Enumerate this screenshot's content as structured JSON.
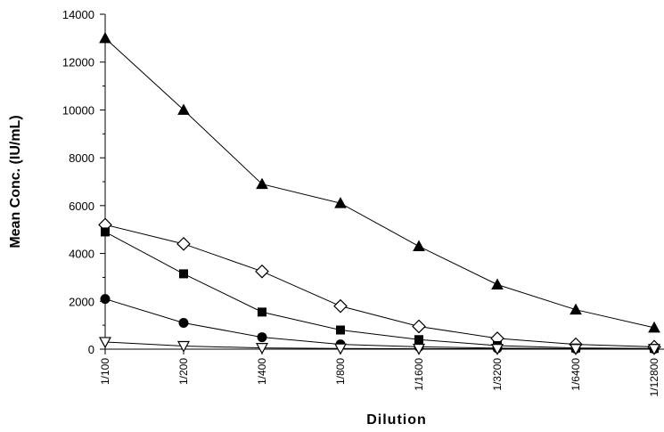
{
  "chart_data": {
    "type": "line",
    "title": "",
    "xlabel": "Dilution",
    "ylabel": "Mean Conc. (IU/mL)",
    "categories": [
      "1/100",
      "1/200",
      "1/400",
      "1/800",
      "1/1600",
      "1/3200",
      "1/6400",
      "1/12800"
    ],
    "ylim": [
      0,
      14000
    ],
    "yticks": [
      0,
      2000,
      4000,
      6000,
      8000,
      10000,
      12000,
      14000
    ],
    "grid": false,
    "legend": "none",
    "series": [
      {
        "marker": "filled-triangle",
        "color": "#000000",
        "values": [
          13000,
          10000,
          6900,
          6100,
          4300,
          2700,
          1650,
          900
        ]
      },
      {
        "marker": "open-diamond",
        "color": "#000000",
        "values": [
          5200,
          4400,
          3250,
          1800,
          950,
          450,
          200,
          100
        ]
      },
      {
        "marker": "filled-square",
        "color": "#000000",
        "values": [
          4900,
          3150,
          1550,
          800,
          400,
          150,
          50,
          30
        ]
      },
      {
        "marker": "filled-circle",
        "color": "#000000",
        "values": [
          2100,
          1100,
          500,
          200,
          100,
          40,
          20,
          10
        ]
      },
      {
        "marker": "open-triangle-down",
        "color": "#000000",
        "values": [
          300,
          130,
          50,
          30,
          20,
          15,
          10,
          10
        ]
      }
    ]
  }
}
